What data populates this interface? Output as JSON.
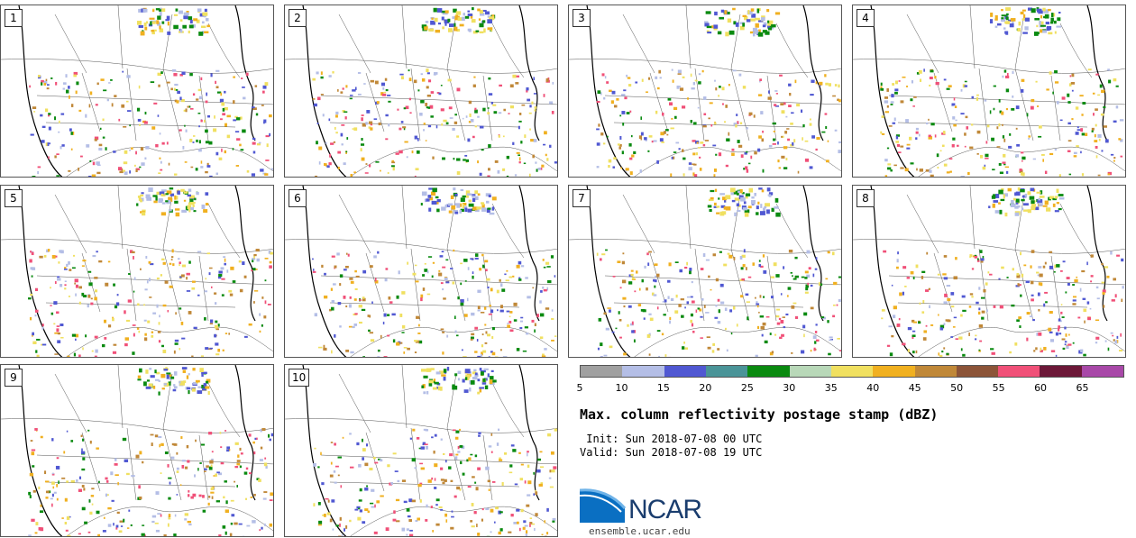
{
  "panels": [
    {
      "label": "1"
    },
    {
      "label": "2"
    },
    {
      "label": "3"
    },
    {
      "label": "4"
    },
    {
      "label": "5"
    },
    {
      "label": "6"
    },
    {
      "label": "7"
    },
    {
      "label": "8"
    },
    {
      "label": "9"
    },
    {
      "label": "10"
    }
  ],
  "colorbar": {
    "colors": [
      "#a0a0a0",
      "#b4bee6",
      "#5058d2",
      "#4a9498",
      "#0a8a10",
      "#b8d8b8",
      "#f0e060",
      "#f0b020",
      "#c08838",
      "#8c5438",
      "#f05078",
      "#6c1838",
      "#a848a8"
    ],
    "ticks": [
      "5",
      "10",
      "15",
      "20",
      "25",
      "30",
      "35",
      "40",
      "45",
      "50",
      "55",
      "60",
      "65"
    ]
  },
  "title": "Max. column reflectivity postage stamp (dBZ)",
  "init_line": " Init: Sun 2018-07-08 00 UTC",
  "valid_line": "Valid: Sun 2018-07-08 19 UTC",
  "logo_text": "NCAR",
  "url": "ensemble.ucar.edu"
}
